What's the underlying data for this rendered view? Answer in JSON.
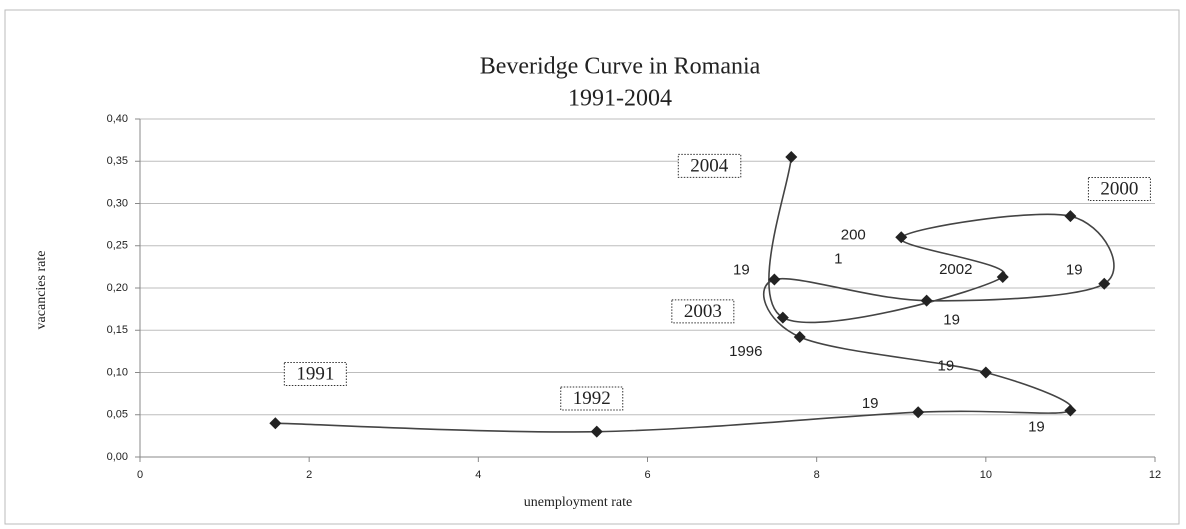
{
  "chart_data": {
    "type": "scatter",
    "title": "Beveridge Curve in Romania",
    "subtitle": "1991-2004",
    "x_label": "unemployment rate",
    "y_label": "vacancies rate",
    "xlim": [
      0,
      12
    ],
    "xticks": [
      0,
      2,
      4,
      6,
      8,
      10,
      12
    ],
    "ylim": [
      0,
      0.4
    ],
    "yticks": [
      {
        "value": 0,
        "label": "0,00"
      },
      {
        "value": 0.05,
        "label": "0,05"
      },
      {
        "value": 0.1,
        "label": "0,10"
      },
      {
        "value": 0.15,
        "label": "0,15"
      },
      {
        "value": 0.2,
        "label": "0,20"
      },
      {
        "value": 0.25,
        "label": "0,25"
      },
      {
        "value": 0.3,
        "label": "0,30"
      },
      {
        "value": 0.35,
        "label": "0,35"
      },
      {
        "value": 0.4,
        "label": "0,40"
      }
    ],
    "grid": true,
    "color": "#222222",
    "x": [
      1.6,
      5.4,
      9.2,
      11.0,
      10.0,
      7.8,
      7.5,
      9.3,
      11.4,
      11.0,
      9.0,
      10.2,
      7.6,
      7.7
    ],
    "values": [
      0.04,
      0.03,
      0.053,
      0.055,
      0.1,
      0.142,
      0.21,
      0.185,
      0.205,
      0.285,
      0.26,
      0.213,
      0.165,
      0.355
    ],
    "point_labels": [
      "1991",
      "1992",
      "19",
      "19",
      "19",
      "1996",
      "19",
      "19",
      "19",
      "2000",
      [
        "200",
        "1"
      ],
      "2002",
      "2003",
      "2004"
    ]
  }
}
